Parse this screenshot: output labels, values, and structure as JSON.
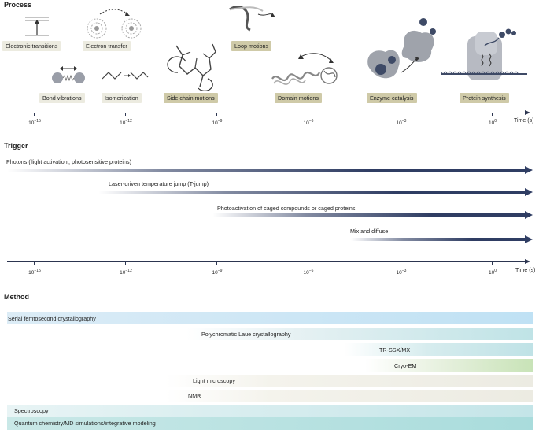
{
  "sections": {
    "process": "Process",
    "trigger": "Trigger",
    "method": "Method"
  },
  "process_labels": [
    "Electronic transitions",
    "Electron transfer",
    "Bond vibrations",
    "Isomerization",
    "Side chain motions",
    "Loop motions",
    "Domain motions",
    "Enzyme catalysis",
    "Protein synthesis"
  ],
  "axis": {
    "ticks": [
      {
        "base": "10",
        "exp": "−15"
      },
      {
        "base": "10",
        "exp": "−12"
      },
      {
        "base": "10",
        "exp": "−9"
      },
      {
        "base": "10",
        "exp": "−6"
      },
      {
        "base": "10",
        "exp": "−3"
      },
      {
        "base": "10",
        "exp": "0"
      }
    ],
    "unit": "Time (s)"
  },
  "triggers": [
    "Photons ('light activation', photosensitive proteins)",
    "Laser-driven temperature jump (T-jump)",
    "Photoactivation of caged compounds or caged proteins",
    "Mix and diffuse"
  ],
  "methods": [
    "Serial femtosecond crystallography",
    "Polychromatic Laue crystallography",
    "TR-SSX/MX",
    "Cryo-EM",
    "Light microscopy",
    "NMR",
    "Spectroscopy",
    "Quantum chemistry/MD simulations/integrative modeling"
  ],
  "colors": {
    "axis": "#2c3550",
    "trigger_arrow": "#2f3d63",
    "label_light": "#ecebe0",
    "label_dark": "#cfcaa8"
  }
}
